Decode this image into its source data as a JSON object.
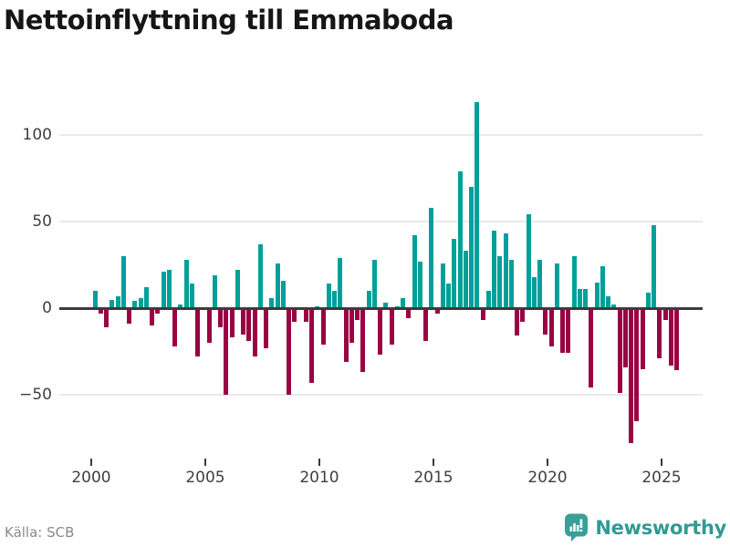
{
  "title": "Nettoinflyttning till Emmaboda",
  "source": "Källa: SCB",
  "brand": {
    "name": "Newsworthy"
  },
  "colors": {
    "positive": "#00a09a",
    "negative": "#9b0243",
    "zero_line": "#3b3b3b",
    "gridline": "#e9e9e9",
    "axis_text": "#3f3f3f",
    "brand_teal": "#2f9b94"
  },
  "chart_data": {
    "type": "bar",
    "title": "Nettoinflyttning till Emmaboda",
    "xlabel": "",
    "ylabel": "",
    "frequency": "quarterly",
    "start": "2000 Q1",
    "end": "2025 Q3",
    "ylim": [
      -86,
      125
    ],
    "grid": true,
    "y_ticks": [
      100,
      50,
      0,
      -50
    ],
    "y_tick_labels": [
      "100",
      "50",
      "0",
      "−50"
    ],
    "x_tick_labels": [
      "2000",
      "2005",
      "2010",
      "2015",
      "2020",
      "2025"
    ],
    "values_by_year": {
      "2000": [
        10,
        -3,
        -11,
        5
      ],
      "2001": [
        7,
        30,
        -9,
        4
      ],
      "2002": [
        6,
        12,
        -10,
        -3
      ],
      "2003": [
        21,
        22,
        -22,
        2
      ],
      "2004": [
        28,
        14,
        -28,
        0
      ],
      "2005": [
        -20,
        19,
        -11,
        -50
      ],
      "2006": [
        -17,
        22,
        -15,
        -19
      ],
      "2007": [
        -28,
        37,
        -23,
        6
      ],
      "2008": [
        26,
        16,
        -50,
        -8
      ],
      "2009": [
        0,
        -8,
        -43,
        1
      ],
      "2010": [
        -21,
        14,
        10,
        29
      ],
      "2011": [
        -31,
        -20,
        -7,
        -37
      ],
      "2012": [
        10,
        28,
        -27,
        3
      ],
      "2013": [
        -21,
        1,
        6,
        -6
      ],
      "2014": [
        42,
        27,
        -19,
        58
      ],
      "2015": [
        -3,
        26,
        14,
        40
      ],
      "2016": [
        79,
        33,
        70,
        119
      ],
      "2017": [
        -7,
        10,
        45,
        30
      ],
      "2018": [
        43,
        28,
        -16,
        -8
      ],
      "2019": [
        54,
        18,
        28,
        -15
      ],
      "2020": [
        -22,
        26,
        -26,
        -26
      ],
      "2021": [
        30,
        11,
        11,
        -46
      ],
      "2022": [
        15,
        24,
        7,
        2
      ],
      "2023": [
        -49,
        -34,
        -78,
        -65
      ],
      "2024": [
        -35,
        9,
        48,
        -29
      ],
      "2025": [
        -7,
        -33,
        -36
      ]
    }
  }
}
